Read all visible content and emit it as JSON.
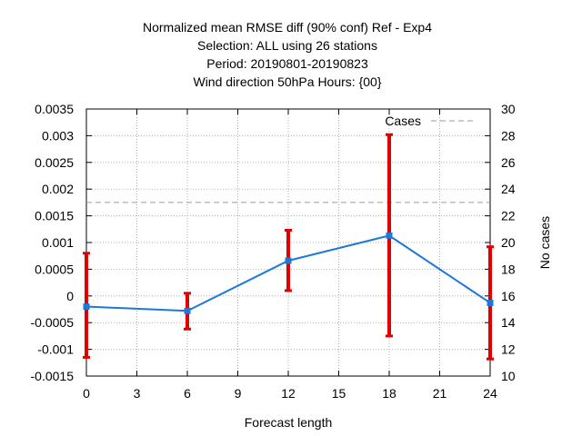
{
  "chart_data": {
    "type": "line",
    "title_lines": [
      "Normalized mean RMSE diff (90% conf) Ref - Exp4",
      "Selection: ALL using    26 stations",
      "Period: 20190801-20190823",
      "Wind direction 50hPa   Hours: {00}"
    ],
    "xlabel": "Forecast length",
    "ylabel": "",
    "y2label": "No cases",
    "xlim": [
      0,
      24
    ],
    "ylim": [
      -0.0015,
      0.0035
    ],
    "y2lim": [
      10,
      30
    ],
    "x_ticks": [
      0,
      3,
      6,
      9,
      12,
      15,
      18,
      21,
      24
    ],
    "y_ticks": [
      -0.0015,
      -0.001,
      -0.0005,
      0,
      0.0005,
      0.001,
      0.0015,
      0.002,
      0.0025,
      0.003,
      0.0035
    ],
    "y_tick_labels": [
      "-0.0015",
      "-0.001",
      "-0.0005",
      "0",
      "0.0005",
      "0.001",
      "0.0015",
      "0.002",
      "0.0025",
      "0.003",
      "0.0035"
    ],
    "y2_ticks": [
      10,
      12,
      14,
      16,
      18,
      20,
      22,
      24,
      26,
      28,
      30
    ],
    "grid": true,
    "legend_position": "top-right",
    "legend_label": "Cases",
    "series": [
      {
        "x": [
          0,
          6,
          12,
          18,
          24
        ],
        "values": [
          -0.0002,
          -0.00028,
          0.00066,
          0.00113,
          -0.00013
        ],
        "err_low": [
          -0.00115,
          -0.00062,
          0.0001,
          -0.00075,
          -0.00118
        ],
        "err_high": [
          0.0008,
          5e-05,
          0.00123,
          0.00302,
          0.00092
        ],
        "color": "#1e78d6",
        "error_color": "#e00000"
      },
      {
        "name": "Cases",
        "x": [
          0,
          24
        ],
        "values": [
          23,
          23
        ],
        "axis": "y2",
        "color": "#9a9a9a",
        "style": "dashed"
      }
    ]
  }
}
